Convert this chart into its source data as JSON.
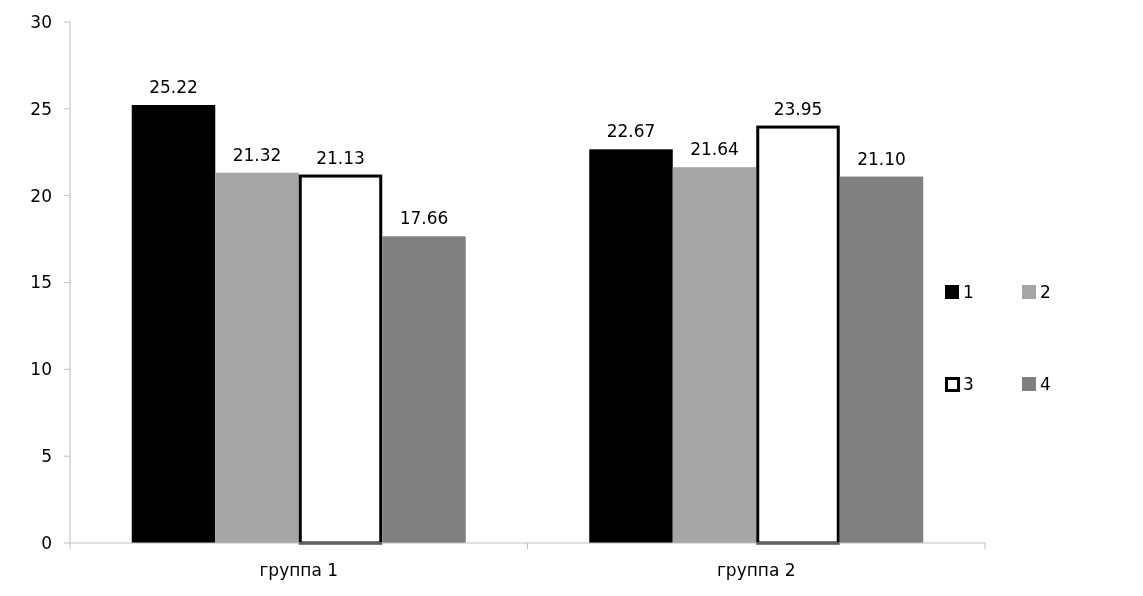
{
  "chart_data": {
    "type": "bar",
    "categories": [
      "группа 1",
      "группа 2"
    ],
    "series": [
      {
        "name": "1",
        "color": "#000000",
        "values": [
          25.22,
          22.67
        ],
        "value_labels": [
          "25.22",
          "22.67"
        ]
      },
      {
        "name": "2",
        "color": "#a6a6a6",
        "values": [
          21.32,
          21.64
        ],
        "value_labels": [
          "21.32",
          "21.64"
        ]
      },
      {
        "name": "3",
        "color": "#ffffff",
        "values": [
          21.13,
          23.95
        ],
        "value_labels": [
          "21.13",
          "23.95"
        ]
      },
      {
        "name": "4",
        "color": "#808080",
        "values": [
          17.66,
          21.1
        ],
        "value_labels": [
          "17.66",
          "21.10"
        ]
      }
    ],
    "ylim": [
      0,
      30
    ],
    "yticks": [
      0,
      5,
      10,
      15,
      20,
      25,
      30
    ],
    "grid": false,
    "legend": "right"
  }
}
